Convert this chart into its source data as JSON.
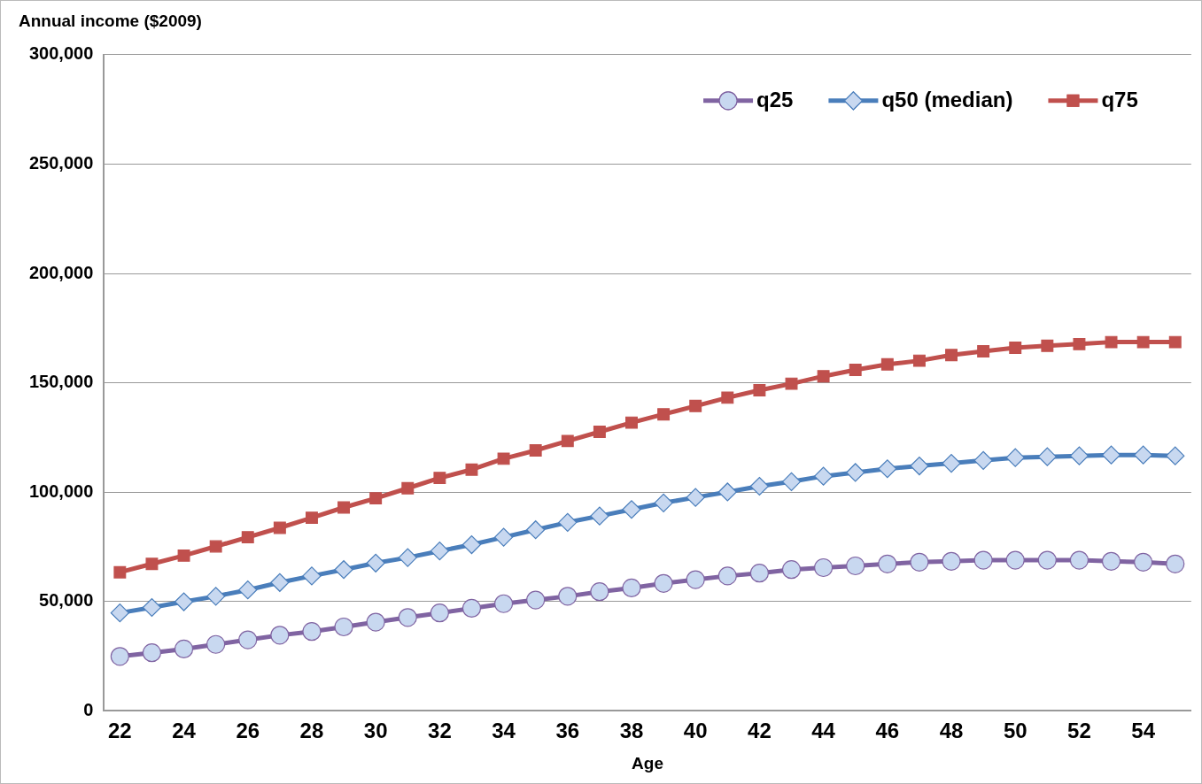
{
  "chart_data": {
    "type": "line",
    "title": "Annual income ($2009)",
    "xlabel": "Age",
    "categories": [
      "22",
      null,
      "24",
      null,
      "26",
      null,
      "28",
      null,
      "30",
      null,
      "32",
      null,
      "34",
      null,
      "36",
      null,
      "38",
      null,
      "40",
      null,
      "42",
      null,
      "44",
      null,
      "46",
      null,
      "48",
      null,
      "50",
      null,
      "52",
      null,
      "54",
      null
    ],
    "series": [
      {
        "name": "q25",
        "color": "#8064a2",
        "marker": "circle",
        "values": [
          24900,
          26600,
          28300,
          30400,
          32500,
          34600,
          36300,
          38400,
          40600,
          42700,
          44800,
          46900,
          49000,
          50700,
          52400,
          54500,
          56200,
          58300,
          60000,
          61700,
          63000,
          64600,
          65500,
          66300,
          67200,
          68000,
          68400,
          68900,
          68900,
          68900,
          68900,
          68400,
          68000,
          67200
        ]
      },
      {
        "name": "q50 (median)",
        "color": "#4a7ebb",
        "marker": "diamond",
        "values": [
          44800,
          47300,
          49900,
          52400,
          55300,
          58700,
          61700,
          64600,
          67600,
          70100,
          73100,
          76000,
          79400,
          82800,
          86200,
          89100,
          92100,
          95100,
          97600,
          100100,
          102700,
          104800,
          107300,
          109000,
          110700,
          112000,
          113200,
          114500,
          115800,
          116200,
          116600,
          117000,
          117000,
          116600
        ]
      },
      {
        "name": "q75",
        "color": "#c0504d",
        "marker": "square",
        "values": [
          63400,
          67200,
          71000,
          75200,
          79400,
          83700,
          88300,
          93000,
          97200,
          101800,
          106500,
          110300,
          115300,
          119100,
          123400,
          127600,
          131800,
          135600,
          139400,
          143200,
          146600,
          149600,
          153000,
          155900,
          158400,
          160100,
          162700,
          164400,
          166000,
          166900,
          167700,
          168600,
          168600,
          168600
        ]
      }
    ],
    "ylim": [
      0,
      300000
    ],
    "yticks": [
      0,
      {
        "value": 50000,
        "label": "50,000"
      },
      {
        "value": 100000,
        "label": "100,000"
      },
      {
        "value": 150000,
        "label": "150,000"
      },
      {
        "value": 200000,
        "label": "200,000"
      },
      {
        "value": 250000,
        "label": "250,000"
      },
      {
        "value": 300000,
        "label": "300,000"
      }
    ],
    "grid": "y",
    "legend": "top right",
    "line_style": "solid"
  }
}
